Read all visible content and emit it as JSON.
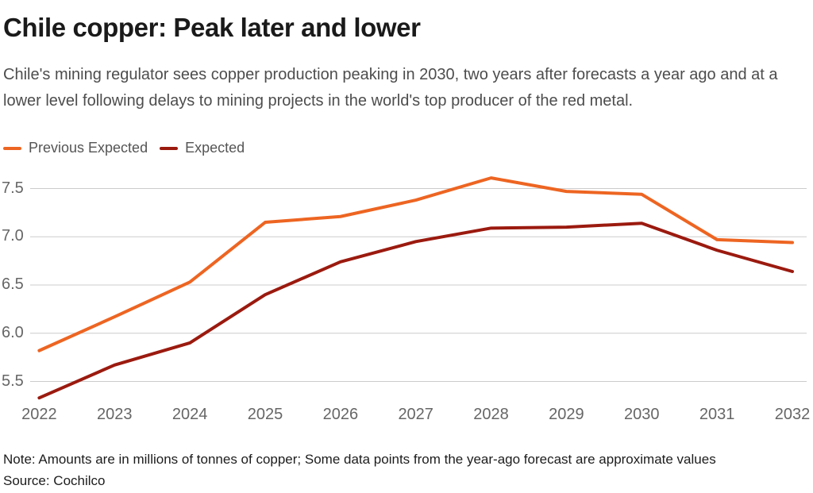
{
  "header": {
    "title": "Chile copper: Peak later and lower",
    "subtitle": "Chile's mining regulator sees copper production peaking in 2030, two years after forecasts a year ago and at a lower level following delays to mining projects in the world's top producer of the red metal."
  },
  "legend": {
    "items": [
      {
        "label": "Previous Expected",
        "color": "#ED6522"
      },
      {
        "label": "Expected",
        "color": "#9B1A0F"
      }
    ]
  },
  "chart_data": {
    "type": "line",
    "title": "Chile copper: Peak later and lower",
    "x": [
      2022,
      2023,
      2024,
      2025,
      2026,
      2027,
      2028,
      2029,
      2030,
      2031,
      2032
    ],
    "series": [
      {
        "name": "Previous Expected",
        "color": "#ED6522",
        "values": [
          5.82,
          6.17,
          6.53,
          7.15,
          7.21,
          7.38,
          7.61,
          7.47,
          7.44,
          6.97,
          6.94
        ]
      },
      {
        "name": "Expected",
        "color": "#9B1A0F",
        "values": [
          5.33,
          5.67,
          5.9,
          6.4,
          6.74,
          6.95,
          7.09,
          7.1,
          7.14,
          6.86,
          6.64
        ]
      }
    ],
    "ylim": [
      5.25,
      7.72
    ],
    "yticks": [
      7.5,
      7.0,
      6.5,
      6.0,
      5.5
    ],
    "ytick_labels": [
      "7.5",
      "7.0",
      "6.5",
      "6.0",
      "5.5"
    ],
    "xtick_labels": [
      "2022",
      "2023",
      "2024",
      "2025",
      "2026",
      "2027",
      "2028",
      "2029",
      "2030",
      "2031",
      "2032"
    ],
    "grid": true,
    "gridline_color": "#cccccc",
    "legend_position": "top-left"
  },
  "footer": {
    "note": "Note: Amounts are in millions of tonnes of copper; Some data points from the year-ago forecast are approximate values",
    "source": "Source: Cochilco"
  }
}
